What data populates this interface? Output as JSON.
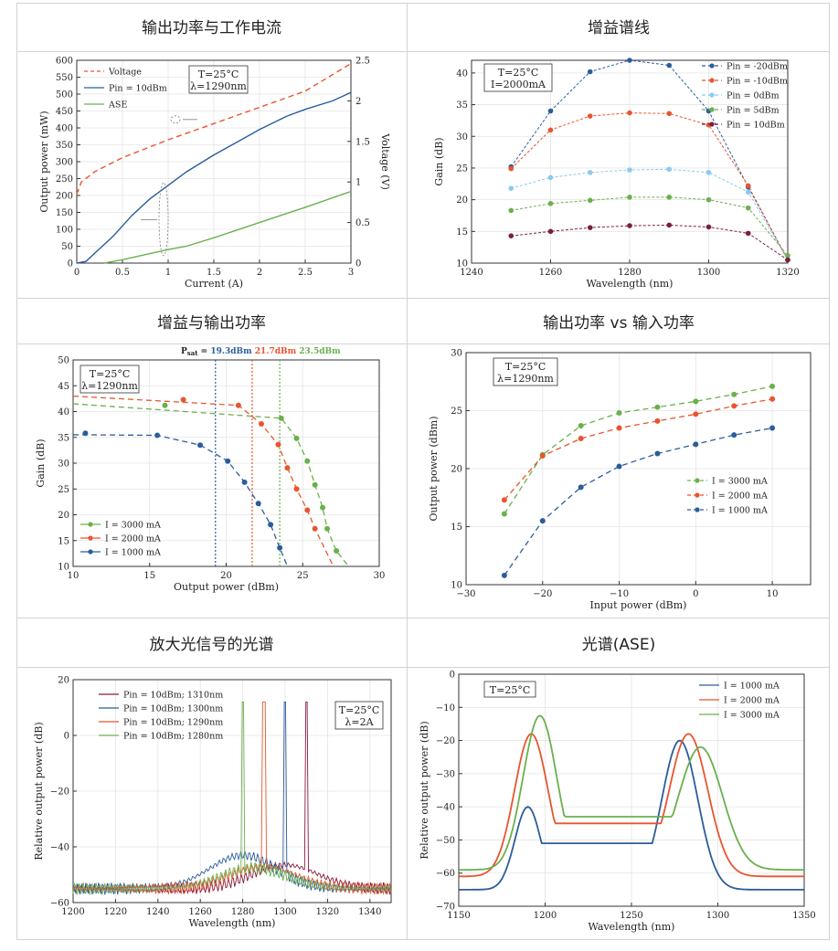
{
  "titles": [
    "输出功率与工作电流",
    "增益谱线",
    "增益与输出功率",
    "输出功率 vs 输入功率",
    "放大光信号的光谱",
    "光谱(ASE)"
  ],
  "colors": {
    "blue": "#2b5d9c",
    "orange": "#e8552f",
    "green": "#6ab04c",
    "red": "#e8552f",
    "lblue": "#8cc9f0",
    "maroon": "#7a1f3d",
    "darkred": "#8b1a3a"
  },
  "chart_data": [
    {
      "type": "line",
      "title": "输出功率与工作电流",
      "xlabel": "Current (A)",
      "ylabel": "Output power (mW)",
      "y2label": "Voltage (V)",
      "xlim": [
        0,
        3
      ],
      "ylim": [
        0,
        600
      ],
      "y2lim": [
        0,
        2.5
      ],
      "xticks": [
        0,
        0.5,
        1,
        1.5,
        2,
        2.5,
        3
      ],
      "yticks": [
        0,
        50,
        100,
        150,
        200,
        250,
        300,
        350,
        400,
        450,
        500,
        550,
        600
      ],
      "y2ticks": [
        0,
        0.5,
        1,
        1.5,
        2,
        2.5
      ],
      "annotation": [
        "T=25°C",
        "λ=1290nm"
      ],
      "series": [
        {
          "name": "Voltage",
          "axis": "right",
          "dashed": true,
          "color": "#e8552f",
          "x": [
            0,
            0.05,
            0.2,
            0.5,
            1,
            1.5,
            2,
            2.5,
            3
          ],
          "y": [
            0.85,
            1.0,
            1.13,
            1.3,
            1.52,
            1.72,
            1.92,
            2.12,
            2.46
          ]
        },
        {
          "name": "Pin = 10dBm",
          "axis": "left",
          "color": "#2b5d9c",
          "x": [
            0,
            0.1,
            0.2,
            0.4,
            0.6,
            0.8,
            1.0,
            1.2,
            1.5,
            1.8,
            2.0,
            2.3,
            2.5,
            2.8,
            3.0
          ],
          "y": [
            0,
            5,
            30,
            80,
            140,
            190,
            230,
            270,
            320,
            365,
            395,
            435,
            455,
            480,
            505
          ]
        },
        {
          "name": "ASE",
          "axis": "left",
          "color": "#6ab04c",
          "x": [
            0.3,
            0.5,
            0.8,
            1.0,
            1.2,
            1.5,
            2.0,
            2.5,
            3.0
          ],
          "y": [
            0,
            10,
            28,
            40,
            50,
            75,
            120,
            165,
            212
          ]
        }
      ],
      "legend": [
        "Voltage",
        "Pin = 10dBm",
        "ASE"
      ]
    },
    {
      "type": "line",
      "title": "增益谱线",
      "xlabel": "Wavelength (nm)",
      "ylabel": "Gain (dB)",
      "xlim": [
        1240,
        1320
      ],
      "ylim": [
        10,
        42
      ],
      "xticks": [
        1240,
        1260,
        1280,
        1300,
        1320
      ],
      "yticks": [
        10,
        15,
        20,
        25,
        30,
        35,
        40
      ],
      "annotation": [
        "T=25°C",
        "I=2000mA"
      ],
      "x": [
        1250,
        1260,
        1270,
        1280,
        1290,
        1300,
        1310,
        1320
      ],
      "series": [
        {
          "name": "Pin = -20dBm",
          "color": "#2b5d9c",
          "values": [
            25.2,
            34,
            40.2,
            42,
            41.2,
            34,
            22,
            10.5
          ]
        },
        {
          "name": "Pin = -10dBm",
          "color": "#e8552f",
          "values": [
            24.9,
            31,
            33.2,
            33.7,
            33.6,
            31.8,
            22.2,
            10.5
          ]
        },
        {
          "name": "Pin = 0dBm",
          "color": "#8cc9f0",
          "values": [
            21.8,
            23.5,
            24.3,
            24.7,
            24.8,
            24.3,
            21.2,
            10.5
          ]
        },
        {
          "name": "Pin = 5dBm",
          "color": "#6ab04c",
          "values": [
            18.3,
            19.4,
            19.9,
            20.4,
            20.4,
            20,
            18.7,
            11.2
          ]
        },
        {
          "name": "Pin = 10dBm",
          "color": "#7a1f3d",
          "values": [
            14.3,
            15,
            15.6,
            15.9,
            16,
            15.7,
            14.7,
            10.5
          ]
        }
      ]
    },
    {
      "type": "scatter",
      "title": "增益与输出功率",
      "xlabel": "Output power (dBm)",
      "ylabel": "Gain (dB)",
      "xlim": [
        10,
        30
      ],
      "ylim": [
        10,
        50
      ],
      "xticks": [
        10,
        15,
        20,
        25,
        30
      ],
      "yticks": [
        10,
        15,
        20,
        25,
        30,
        35,
        40,
        45,
        50
      ],
      "annotation": [
        "T=25°C",
        "λ=1290nm"
      ],
      "psat_label": "P",
      "psat_sub": "sat",
      "psat_eq": " = ",
      "psat": [
        {
          "value": 19.3,
          "label": "19.3dBm",
          "color": "#2b5d9c"
        },
        {
          "value": 21.7,
          "label": "21.7dBm",
          "color": "#e8552f"
        },
        {
          "value": 23.5,
          "label": "23.5dBm",
          "color": "#6ab04c"
        }
      ],
      "series": [
        {
          "name": "I = 3000 mA",
          "color": "#6ab04c",
          "x": [
            16,
            23.6,
            24.6,
            25.3,
            25.8,
            26.3,
            26.6,
            27.2
          ],
          "y": [
            41.2,
            38.7,
            34.8,
            30.4,
            25.8,
            21.4,
            17.3,
            13
          ],
          "fit_plateau": 41.5,
          "fit_end": [
            28,
            10
          ]
        },
        {
          "name": "I = 2000 mA",
          "color": "#e8552f",
          "x": [
            17.2,
            20.8,
            22.3,
            23.4,
            24,
            24.6,
            25.3,
            25.8
          ],
          "y": [
            42.3,
            41.2,
            37.6,
            33.6,
            29.1,
            25,
            20.9,
            17.3
          ],
          "fit_plateau": 43,
          "fit_end": [
            27,
            10
          ]
        },
        {
          "name": "I = 1000 mA",
          "color": "#2b5d9c",
          "x": [
            10.8,
            15.5,
            18.3,
            20.1,
            21.2,
            22.1,
            22.9,
            23.5
          ],
          "y": [
            35.8,
            35.4,
            33.5,
            30.4,
            26.3,
            22.2,
            18.1,
            13.6
          ],
          "fit_plateau": 35.5,
          "fit_end": [
            24,
            10
          ]
        }
      ]
    },
    {
      "type": "line",
      "title": "输出功率 vs 输入功率",
      "xlabel": "Input power (dBm)",
      "ylabel": "Output power (dBm)",
      "xlim": [
        -30,
        15
      ],
      "ylim": [
        10,
        30
      ],
      "xticks": [
        -30,
        -20,
        -10,
        0,
        10
      ],
      "yticks": [
        10,
        15,
        20,
        25,
        30
      ],
      "annotation": [
        "T=25°C",
        "λ=1290nm"
      ],
      "x": [
        -25,
        -20,
        -15,
        -10,
        -5,
        0,
        5,
        10
      ],
      "series": [
        {
          "name": "I = 3000 mA",
          "color": "#6ab04c",
          "values": [
            16.1,
            21.2,
            23.7,
            24.8,
            25.3,
            25.8,
            26.4,
            27.1
          ]
        },
        {
          "name": "I = 2000 mA",
          "color": "#e8552f",
          "values": [
            17.3,
            21.1,
            22.6,
            23.5,
            24.1,
            24.7,
            25.4,
            26
          ]
        },
        {
          "name": "I = 1000 mA",
          "color": "#2b5d9c",
          "values": [
            10.8,
            15.5,
            18.4,
            20.2,
            21.3,
            22.1,
            22.9,
            23.5
          ]
        }
      ]
    },
    {
      "type": "line",
      "title": "放大光信号的光谱",
      "xlabel": "Wavelength (nm)",
      "ylabel": "Relative output power (dB)",
      "xlim": [
        1200,
        1350
      ],
      "ylim": [
        -60,
        20
      ],
      "xticks": [
        1200,
        1220,
        1240,
        1260,
        1280,
        1300,
        1320,
        1340
      ],
      "yticks": [
        -60,
        -40,
        -20,
        0,
        20
      ],
      "annotation": [
        "T=25°C",
        "λ=2A"
      ],
      "series": [
        {
          "name": "Pin = 10dBm; 1310nm",
          "color": "#8b1a3a",
          "peak": 1310,
          "peak_value": 12,
          "ase_center": 1300,
          "ase_top": -46.5
        },
        {
          "name": "Pin = 10dBm; 1300nm",
          "color": "#2b5d9c",
          "peak": 1300,
          "peak_value": 12,
          "ase_center": 1280,
          "ase_top": -43
        },
        {
          "name": "Pin = 10dBm; 1290nm",
          "color": "#e8552f",
          "peak": 1290,
          "peak_value": 12,
          "ase_center": 1290,
          "ase_top": -47
        },
        {
          "name": "Pin = 10dBm; 1280nm",
          "color": "#6ab04c",
          "peak": 1280,
          "peak_value": 12,
          "ase_center": 1285,
          "ase_top": -47.5
        }
      ]
    },
    {
      "type": "line",
      "title": "光谱(ASE)",
      "xlabel": "Wavelength (nm)",
      "ylabel": "Relative output power (dB)",
      "xlim": [
        1150,
        1350
      ],
      "ylim": [
        -70,
        0
      ],
      "xticks": [
        1150,
        1200,
        1250,
        1300,
        1350
      ],
      "yticks": [
        -70,
        -60,
        -50,
        -40,
        -30,
        -20,
        -10,
        0
      ],
      "annotation": [
        "T=25°C"
      ],
      "series": [
        {
          "name": "I = 1000 mA",
          "color": "#2b5d9c",
          "base": -65,
          "peaks": [
            {
              "c": 1190,
              "h": -40,
              "w": 10
            },
            {
              "c": 1278,
              "h": -20,
              "w": 14
            }
          ],
          "valley": -51
        },
        {
          "name": "I = 2000 mA",
          "color": "#e8552f",
          "base": -61,
          "peaks": [
            {
              "c": 1192,
              "h": -18,
              "w": 13
            },
            {
              "c": 1283,
              "h": -18,
              "w": 15
            }
          ],
          "valley": -45
        },
        {
          "name": "I = 3000 mA",
          "color": "#6ab04c",
          "base": -59,
          "peaks": [
            {
              "c": 1197,
              "h": -12.5,
              "w": 13
            },
            {
              "c": 1290,
              "h": -22,
              "w": 17
            }
          ],
          "valley": -43
        }
      ]
    }
  ]
}
